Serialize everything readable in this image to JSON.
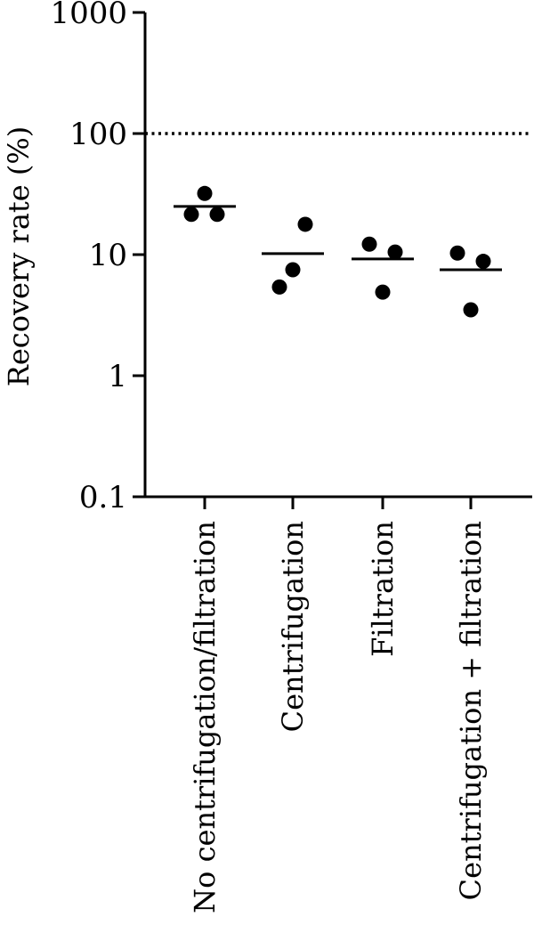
{
  "chart_data": {
    "type": "scatter",
    "ylabel": "Recovery rate (%)",
    "xlabel": "",
    "y_scale": "log",
    "ylim": [
      0.1,
      1000
    ],
    "y_ticks": [
      "0.1",
      "1",
      "10",
      "100",
      "1000"
    ],
    "reference_line": {
      "y": 100,
      "style": "dotted"
    },
    "grid": false,
    "categories": [
      "No centrifugation/filtration",
      "Centrifugation",
      "Filtration",
      "Centrifugation + filtration"
    ],
    "points": [
      [
        21.5,
        32,
        21.5
      ],
      [
        5.4,
        7.5,
        17.8
      ],
      [
        12.2,
        4.9,
        10.5
      ],
      [
        10.3,
        3.5,
        8.8
      ]
    ],
    "means": [
      25,
      10.2,
      9.2,
      7.5
    ]
  }
}
